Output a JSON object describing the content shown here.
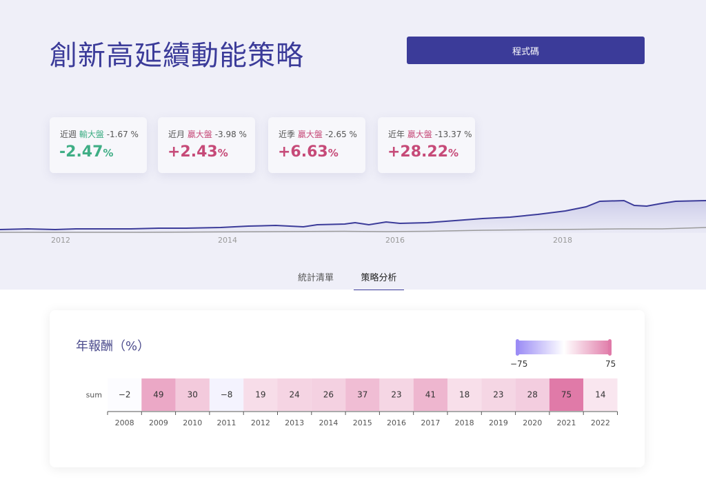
{
  "header": {
    "title": "創新高延續動能策略",
    "code_button_label": "程式碼"
  },
  "stats": [
    {
      "period": "近週",
      "compare": "輸大盤",
      "compare_type": "lose",
      "benchmark": "-1.67 %",
      "value": "-2.47",
      "unit": "%",
      "sign": "neg"
    },
    {
      "period": "近月",
      "compare": "贏大盤",
      "compare_type": "win",
      "benchmark": "-3.98 %",
      "value": "+2.43",
      "unit": "%",
      "sign": "pos"
    },
    {
      "period": "近季",
      "compare": "贏大盤",
      "compare_type": "win",
      "benchmark": "-2.65 %",
      "value": "+6.63",
      "unit": "%",
      "sign": "pos"
    },
    {
      "period": "近年",
      "compare": "贏大盤",
      "compare_type": "win",
      "benchmark": "-13.37 %",
      "value": "+28.22",
      "unit": "%",
      "sign": "pos"
    }
  ],
  "equity_chart": {
    "x_ticks": [
      "2012",
      "2014",
      "2016",
      "2018"
    ],
    "strategy_color": "#3b3b99",
    "benchmark_color": "#9a9a9a"
  },
  "tabs": [
    {
      "label": "統計清單",
      "active": false
    },
    {
      "label": "策略分析",
      "active": true
    }
  ],
  "heatmap": {
    "title": "年報酬（%）",
    "row_label": "sum",
    "legend_min": "−75",
    "legend_max": "75",
    "color_low": "#9b8cf5",
    "color_high": "#e07aa8"
  },
  "chart_data": {
    "type": "heatmap",
    "title": "年報酬（%）",
    "rows": [
      "sum"
    ],
    "categories": [
      "2008",
      "2009",
      "2010",
      "2011",
      "2012",
      "2013",
      "2014",
      "2015",
      "2016",
      "2017",
      "2018",
      "2019",
      "2020",
      "2021",
      "2022"
    ],
    "values": [
      -2,
      49,
      30,
      -8,
      19,
      24,
      26,
      37,
      23,
      41,
      18,
      23,
      28,
      75,
      14
    ],
    "color_range": [
      -75,
      75
    ]
  }
}
